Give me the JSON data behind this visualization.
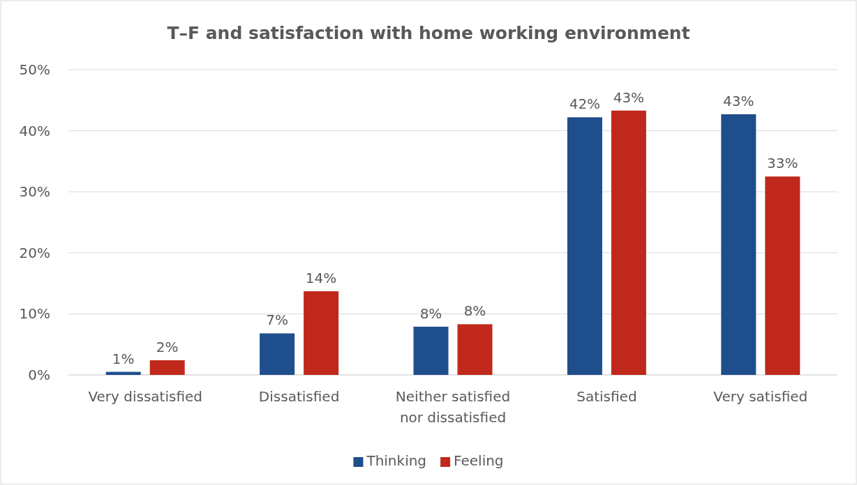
{
  "chart_data": {
    "type": "bar",
    "title": "T–F and satisfaction with home working environment",
    "categories": [
      "Very dissatisfied",
      "Dissatisfied",
      "Neither satisfied nor dissatisfied",
      "Satisfied",
      "Very satisfied"
    ],
    "series": [
      {
        "name": "Thinking",
        "color": "#1f4e8c",
        "values": [
          0.5,
          6.8,
          7.9,
          42.2,
          42.7
        ],
        "value_labels": [
          "1%",
          "7%",
          "8%",
          "42%",
          "43%"
        ]
      },
      {
        "name": "Feeling",
        "color": "#c0281c",
        "values": [
          2.4,
          13.7,
          8.3,
          43.3,
          32.5
        ],
        "value_labels": [
          "2%",
          "14%",
          "8%",
          "43%",
          "33%"
        ]
      }
    ],
    "ylim": [
      0,
      50
    ],
    "yticks": [
      {
        "value": 0,
        "label": "0%"
      },
      {
        "value": 10,
        "label": "10%"
      },
      {
        "value": 20,
        "label": "20%"
      },
      {
        "value": 30,
        "label": "30%"
      },
      {
        "value": 40,
        "label": "40%"
      },
      {
        "value": 50,
        "label": "50%"
      }
    ],
    "grid": "y",
    "legend": "bottom"
  }
}
